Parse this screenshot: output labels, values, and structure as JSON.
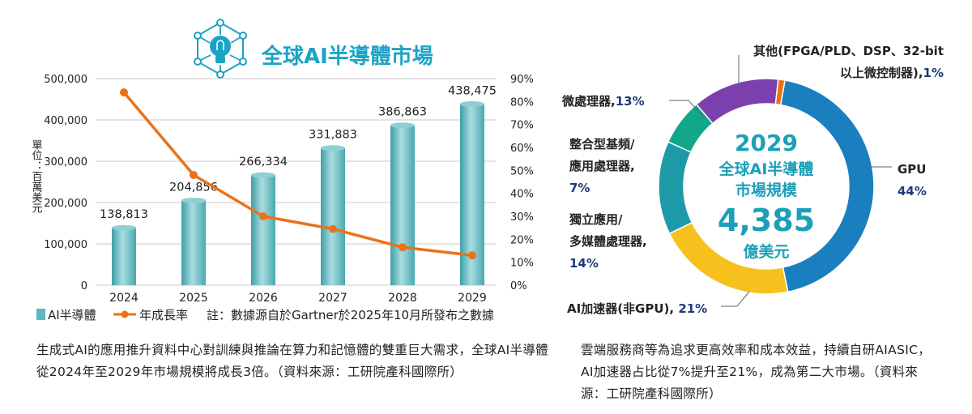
{
  "bar_line_panel": {
    "title": "全球AI半導體市場",
    "title_icon": "lightbulb-network-icon",
    "unit_label": "單位：百萬美元",
    "legend": {
      "bar": "AI半導體",
      "line": "年成長率",
      "note": "註：數據源自於Gartner於2025年10月所發布之數據"
    }
  },
  "donut_panel": {
    "center": {
      "year": "2029",
      "line1": "全球AI半導體",
      "line2": "市場規模",
      "value": "4,385",
      "unit": "億美元"
    }
  },
  "captions": {
    "left": "生成式AI的應用推升資料中心對訓練與推論在算力和記憶體的雙重巨大需求，全球AI半導體從2024年至2029年市場規模將成長3倍。（資料來源：工研院產科國際所）",
    "right": "雲端服務商等為追求更高效率和成本效益，持續自研AIASIC，AI加速器占比從7%提升至21%，成為第二大市場。（資料來源：工研院產科國際所）"
  },
  "colors": {
    "title": "#1ba3c6",
    "bar": "#5bb8c0",
    "line": "#e8731a",
    "grid": "#c8c8c8",
    "center_text": "#1aa0b8",
    "pct_text": "#1f3a7a"
  },
  "chart_data": [
    {
      "type": "bar",
      "title": "全球AI半導體市場",
      "categories": [
        "2024",
        "2025",
        "2026",
        "2027",
        "2028",
        "2029"
      ],
      "series": [
        {
          "name": "AI半導體",
          "values": [
            138813,
            204856,
            266334,
            331883,
            386863,
            438475
          ],
          "labels": [
            "138,813",
            "204,856",
            "266,334",
            "331,883",
            "386,863",
            "438,475"
          ],
          "axis": "left"
        },
        {
          "name": "年成長率",
          "type": "line",
          "values": [
            84,
            48,
            30,
            24.5,
            16.5,
            13
          ],
          "axis": "right"
        }
      ],
      "ylim": [
        0,
        500000
      ],
      "yticks": [
        "0",
        "100,000",
        "200,000",
        "300,000",
        "400,000",
        "500,000"
      ],
      "ylim_right": [
        0,
        90
      ],
      "yticks_right": [
        "0%",
        "10%",
        "20%",
        "30%",
        "40%",
        "50%",
        "60%",
        "70%",
        "80%",
        "90%"
      ],
      "ylabel": "單位：百萬美元",
      "grid": true
    },
    {
      "type": "pie",
      "title": "2029 全球AI半導體市場規模 4,385 億美元",
      "slices": [
        {
          "name": "GPU",
          "value": 44,
          "text_lines": [
            "GPU"
          ],
          "pct": "44%",
          "color": "#1a7fbf"
        },
        {
          "name": "AI加速器(非GPU)",
          "value": 21,
          "text_lines": [
            "AI加速器(非GPU), "
          ],
          "pct": "21%",
          "color": "#f6c11d"
        },
        {
          "name": "獨立應用/多媒體處理器",
          "value": 14,
          "text_lines": [
            "獨立應用/",
            "多媒體處理器,"
          ],
          "pct": "14%",
          "color": "#1d9aa8"
        },
        {
          "name": "整合型基頻/應用處理器",
          "value": 7,
          "text_lines": [
            "整合型基頻/",
            "應用處理器,"
          ],
          "pct": "7%",
          "color": "#12a78a"
        },
        {
          "name": "微處理器",
          "value": 13,
          "text_lines": [
            "微處理器,"
          ],
          "pct": "13%",
          "color": "#7c3fae"
        },
        {
          "name": "其他(FPGA/PLD、DSP、32-bit以上微控制器)",
          "value": 1,
          "text_lines": [
            "其他(FPGA/PLD、DSP、32-bit",
            "以上微控制器),"
          ],
          "pct": "1%",
          "color": "#e8731a"
        }
      ]
    }
  ]
}
